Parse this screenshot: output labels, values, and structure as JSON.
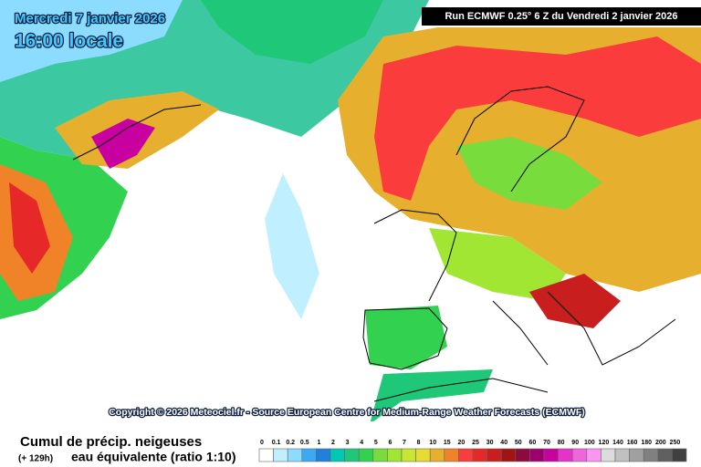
{
  "header": {
    "date": "Mercredi 7 janvier 2026",
    "time": "16:00 locale",
    "run": "Run ECMWF 0.25° 6 Z du Vendredi 2 janvier 2026"
  },
  "copyright": "Copyright © 2026 Meteociel.fr - Source European Centre for Medium-Range Weather Forecasts (ECMWF)",
  "legend": {
    "title": "Cumul de précip. neigeuses",
    "lead": "(+ 129h)",
    "subtitle": "eau équivalente (ratio 1:10)",
    "labels": [
      "0",
      "0.1",
      "0.2",
      "0.5",
      "1",
      "2",
      "3",
      "4",
      "5",
      "6",
      "7",
      "8",
      "10",
      "15",
      "20",
      "25",
      "30",
      "40",
      "50",
      "60",
      "70",
      "80",
      "90",
      "100",
      "120",
      "140",
      "160",
      "180",
      "200",
      "250"
    ],
    "colors": [
      "#ffffff",
      "#c0f0ff",
      "#8cdcff",
      "#3caaf0",
      "#1e82dc",
      "#00c8b4",
      "#1ec878",
      "#32d250",
      "#78dc3c",
      "#a0e632",
      "#c8e632",
      "#e6dc32",
      "#e6af2d",
      "#f08228",
      "#fa3c3c",
      "#e62828",
      "#c81e1e",
      "#a01414",
      "#8c0a3c",
      "#a0006e",
      "#c800a0",
      "#e632c8",
      "#f064dc",
      "#fa96f0",
      "#dcdcdc",
      "#c0c0c0",
      "#a0a0a0",
      "#808080",
      "#606060",
      "#404040"
    ]
  }
}
